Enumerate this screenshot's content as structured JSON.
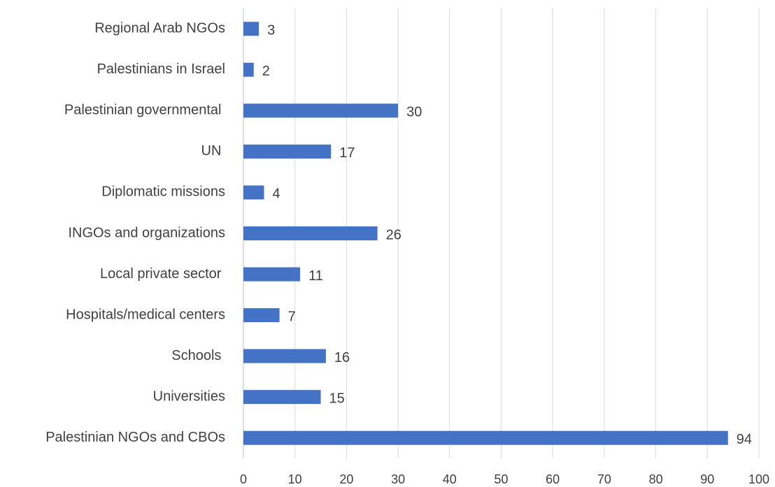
{
  "chart_data": {
    "type": "barh",
    "categories": [
      "Regional Arab NGOs",
      "Palestinians in Israel",
      "Palestinian governmental ",
      "UN ",
      "Diplomatic missions",
      "INGOs and organizations",
      "Local private sector ",
      "Hospitals/medical centers",
      "Schools ",
      "Universities",
      "Palestinian NGOs and CBOs"
    ],
    "values": [
      3,
      2,
      30,
      17,
      4,
      26,
      11,
      7,
      16,
      15,
      94
    ],
    "color": "#4472c4",
    "xlim": [
      0,
      100
    ],
    "xticks": [
      0,
      10,
      20,
      30,
      40,
      50,
      60,
      70,
      80,
      90,
      100
    ],
    "grid": true
  }
}
